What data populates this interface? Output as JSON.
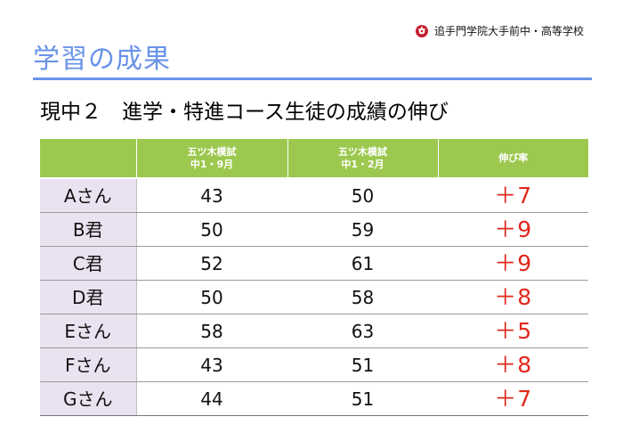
{
  "header": {
    "school_name": "追手門学院大手前中・高等学校",
    "logo_icon": "school-emblem-icon",
    "section_title": "学習の成果",
    "slide_title": "現中２　進学・特進コース生徒の成績の伸び"
  },
  "table": {
    "columns": [
      "",
      "五ツ木模試\n中1・9月",
      "五ツ木模試\n中1・2月",
      "伸び率"
    ],
    "rows": [
      {
        "name": "Aさん",
        "sep": "43",
        "feb": "50",
        "gain": "＋7"
      },
      {
        "name": "B君",
        "sep": "50",
        "feb": "59",
        "gain": "＋9"
      },
      {
        "name": "C君",
        "sep": "52",
        "feb": "61",
        "gain": "＋9"
      },
      {
        "name": "D君",
        "sep": "50",
        "feb": "58",
        "gain": "＋8"
      },
      {
        "name": "Eさん",
        "sep": "58",
        "feb": "63",
        "gain": "＋5"
      },
      {
        "name": "Fさん",
        "sep": "43",
        "feb": "51",
        "gain": "＋8"
      },
      {
        "name": "Gさん",
        "sep": "44",
        "feb": "51",
        "gain": "＋7"
      }
    ]
  },
  "colors": {
    "section_title": "#6a93e8",
    "table_header_bg": "#9cc84f",
    "name_column_bg": "#e9e2f0",
    "gain_text": "#e0281e"
  }
}
